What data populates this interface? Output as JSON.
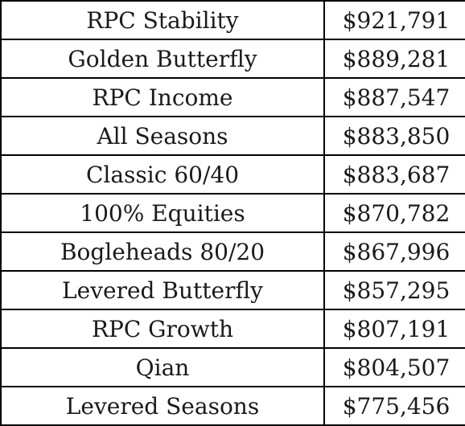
{
  "table": {
    "rows": [
      {
        "portfolio": "RPC Stability",
        "value": "$921,791"
      },
      {
        "portfolio": "Golden Butterfly",
        "value": "$889,281"
      },
      {
        "portfolio": "RPC Income",
        "value": "$887,547"
      },
      {
        "portfolio": "All Seasons",
        "value": "$883,850"
      },
      {
        "portfolio": "Classic 60/40",
        "value": "$883,687"
      },
      {
        "portfolio": "100% Equities",
        "value": "$870,782"
      },
      {
        "portfolio": "Bogleheads 80/20",
        "value": "$867,996"
      },
      {
        "portfolio": "Levered Butterfly",
        "value": "$857,295"
      },
      {
        "portfolio": "RPC Growth",
        "value": "$807,191"
      },
      {
        "portfolio": "Qian",
        "value": "$804,507"
      },
      {
        "portfolio": "Levered Seasons",
        "value": "$775,456"
      }
    ]
  }
}
